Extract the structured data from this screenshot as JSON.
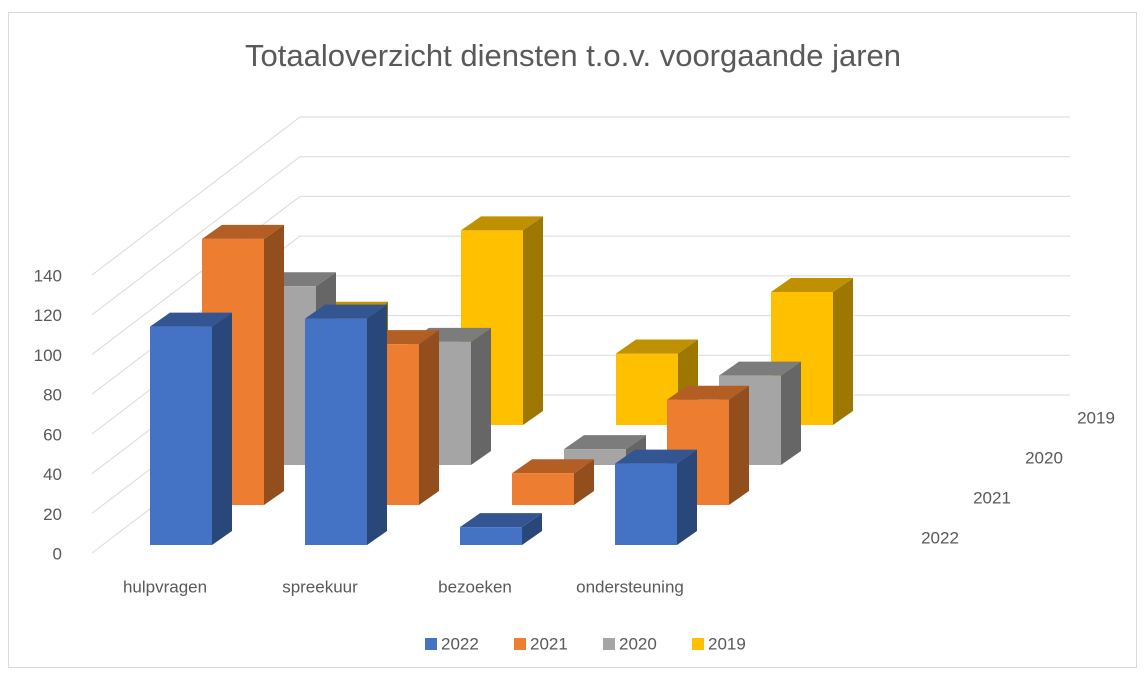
{
  "chart_data": {
    "type": "bar3d",
    "title": "Totaaloverzicht diensten t.o.v. voorgaande jaren",
    "categories": [
      "hulpvragen",
      "spreekuur",
      "bezoeken",
      "ondersteuning"
    ],
    "series": [
      {
        "name": "2022",
        "color": "#4472c4",
        "values": [
          110,
          114,
          9,
          41
        ]
      },
      {
        "name": "2021",
        "color": "#ed7d31",
        "values": [
          134,
          81,
          16,
          53
        ]
      },
      {
        "name": "2020",
        "color": "#a5a5a5",
        "values": [
          90,
          62,
          8,
          45
        ]
      },
      {
        "name": "2019",
        "color": "#ffc000",
        "values": [
          55,
          98,
          36,
          67
        ]
      }
    ],
    "ylim": [
      0,
      140
    ],
    "yticks": [
      0,
      20,
      40,
      60,
      80,
      100,
      120,
      140
    ],
    "grid": true,
    "legend": "bottom"
  }
}
